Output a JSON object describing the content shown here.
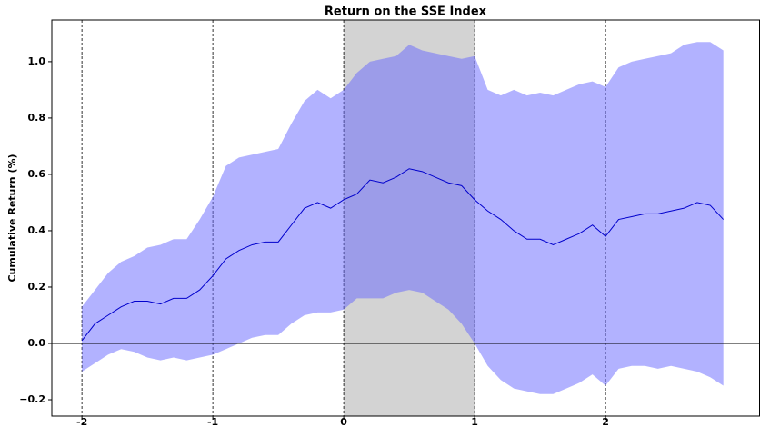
{
  "chart_data": {
    "type": "line",
    "title": "Return on the SSE Index",
    "ylabel": "Cumulative Return (%)",
    "x": [
      -2.0,
      -1.9,
      -1.8,
      -1.7,
      -1.6,
      -1.5,
      -1.4,
      -1.3,
      -1.2,
      -1.1,
      -1.0,
      -0.9,
      -0.8,
      -0.7,
      -0.6,
      -0.5,
      -0.4,
      -0.3,
      -0.2,
      -0.1,
      0.0,
      0.1,
      0.2,
      0.3,
      0.4,
      0.5,
      0.6,
      0.7,
      0.8,
      0.9,
      1.0,
      1.1,
      1.2,
      1.3,
      1.4,
      1.5,
      1.6,
      1.7,
      1.8,
      1.9,
      2.0,
      2.1,
      2.2,
      2.3,
      2.4,
      2.5,
      2.6,
      2.7,
      2.8,
      2.9
    ],
    "values": [
      0.01,
      0.07,
      0.1,
      0.13,
      0.15,
      0.15,
      0.14,
      0.16,
      0.16,
      0.19,
      0.24,
      0.3,
      0.33,
      0.35,
      0.36,
      0.36,
      0.42,
      0.48,
      0.5,
      0.48,
      0.51,
      0.53,
      0.58,
      0.57,
      0.59,
      0.62,
      0.61,
      0.59,
      0.57,
      0.56,
      0.51,
      0.47,
      0.44,
      0.4,
      0.37,
      0.37,
      0.35,
      0.37,
      0.39,
      0.42,
      0.38,
      0.44,
      0.45,
      0.46,
      0.46,
      0.47,
      0.48,
      0.5,
      0.49,
      0.44
    ],
    "upper": [
      0.13,
      0.19,
      0.25,
      0.29,
      0.31,
      0.34,
      0.35,
      0.37,
      0.37,
      0.44,
      0.52,
      0.63,
      0.66,
      0.67,
      0.68,
      0.69,
      0.78,
      0.86,
      0.9,
      0.87,
      0.9,
      0.96,
      1.0,
      1.01,
      1.02,
      1.06,
      1.04,
      1.03,
      1.02,
      1.01,
      1.02,
      0.9,
      0.88,
      0.9,
      0.88,
      0.89,
      0.88,
      0.9,
      0.92,
      0.93,
      0.91,
      0.98,
      1.0,
      1.01,
      1.02,
      1.03,
      1.06,
      1.07,
      1.07,
      1.04
    ],
    "lower": [
      -0.1,
      -0.07,
      -0.04,
      -0.02,
      -0.03,
      -0.05,
      -0.06,
      -0.05,
      -0.06,
      -0.05,
      -0.04,
      -0.02,
      0.0,
      0.02,
      0.03,
      0.03,
      0.07,
      0.1,
      0.11,
      0.11,
      0.12,
      0.16,
      0.16,
      0.16,
      0.18,
      0.19,
      0.18,
      0.15,
      0.12,
      0.07,
      0.0,
      -0.08,
      -0.13,
      -0.16,
      -0.17,
      -0.18,
      -0.18,
      -0.16,
      -0.14,
      -0.11,
      -0.15,
      -0.09,
      -0.08,
      -0.08,
      -0.09,
      -0.08,
      -0.09,
      -0.1,
      -0.12,
      -0.15
    ],
    "color": "#0000cc",
    "band_color": "#6666ff",
    "shaded_span": [
      0,
      1
    ],
    "shaded_color": "#808080",
    "hline": 0,
    "xlim": [
      -2.23,
      3.18
    ],
    "ylim": [
      -0.258,
      1.148
    ],
    "xticks": [
      -2,
      -1,
      0,
      1,
      2
    ],
    "yticks": [
      {
        "value": -0.2,
        "label": "−0.2"
      },
      {
        "value": 0,
        "label": "0.0"
      },
      {
        "value": 0.2,
        "label": "0.2"
      },
      {
        "value": 0.4,
        "label": "0.4"
      },
      {
        "value": 0.6,
        "label": "0.6"
      },
      {
        "value": 0.8,
        "label": "0.8"
      },
      {
        "value": 1.0,
        "label": "1.0"
      }
    ],
    "xgrid": true
  }
}
